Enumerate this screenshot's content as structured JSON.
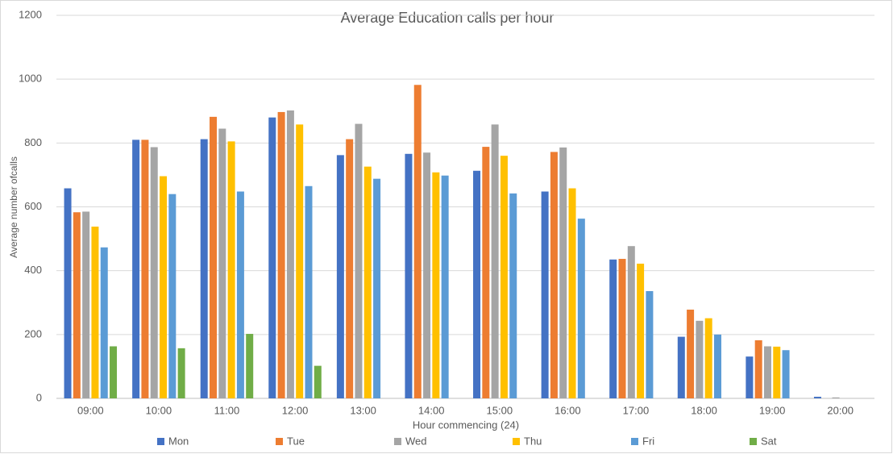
{
  "chart_data": {
    "type": "bar",
    "title": "Average Education calls per hour",
    "x_label": "Hour commencing (24)",
    "y_label": "Average number ofcalls",
    "categories": [
      "09:00",
      "10:00",
      "11:00",
      "12:00",
      "13:00",
      "14:00",
      "15:00",
      "16:00",
      "17:00",
      "18:00",
      "19:00",
      "20:00"
    ],
    "series": [
      {
        "name": "Mon",
        "color": "#4472c4",
        "values": [
          658,
          810,
          812,
          880,
          762,
          766,
          713,
          648,
          435,
          193,
          131,
          5
        ]
      },
      {
        "name": "Tue",
        "color": "#ed7d31",
        "values": [
          583,
          810,
          882,
          897,
          812,
          982,
          788,
          772,
          437,
          278,
          182,
          null
        ]
      },
      {
        "name": "Wed",
        "color": "#a5a5a5",
        "values": [
          585,
          787,
          845,
          902,
          860,
          770,
          858,
          786,
          477,
          243,
          163,
          3
        ]
      },
      {
        "name": "Thu",
        "color": "#ffc000",
        "values": [
          538,
          696,
          805,
          858,
          726,
          708,
          760,
          658,
          422,
          251,
          162,
          null
        ]
      },
      {
        "name": "Fri",
        "color": "#5b9bd5",
        "values": [
          473,
          640,
          648,
          665,
          688,
          698,
          642,
          563,
          336,
          200,
          151,
          null
        ]
      },
      {
        "name": "Sat",
        "color": "#70ad47",
        "values": [
          163,
          157,
          202,
          102,
          null,
          null,
          null,
          null,
          null,
          null,
          null,
          null
        ]
      }
    ],
    "ylim": [
      0,
      1200
    ],
    "yticks": [
      0,
      200,
      400,
      600,
      800,
      1000,
      1200
    ],
    "grid": true,
    "legend": "bottom"
  }
}
